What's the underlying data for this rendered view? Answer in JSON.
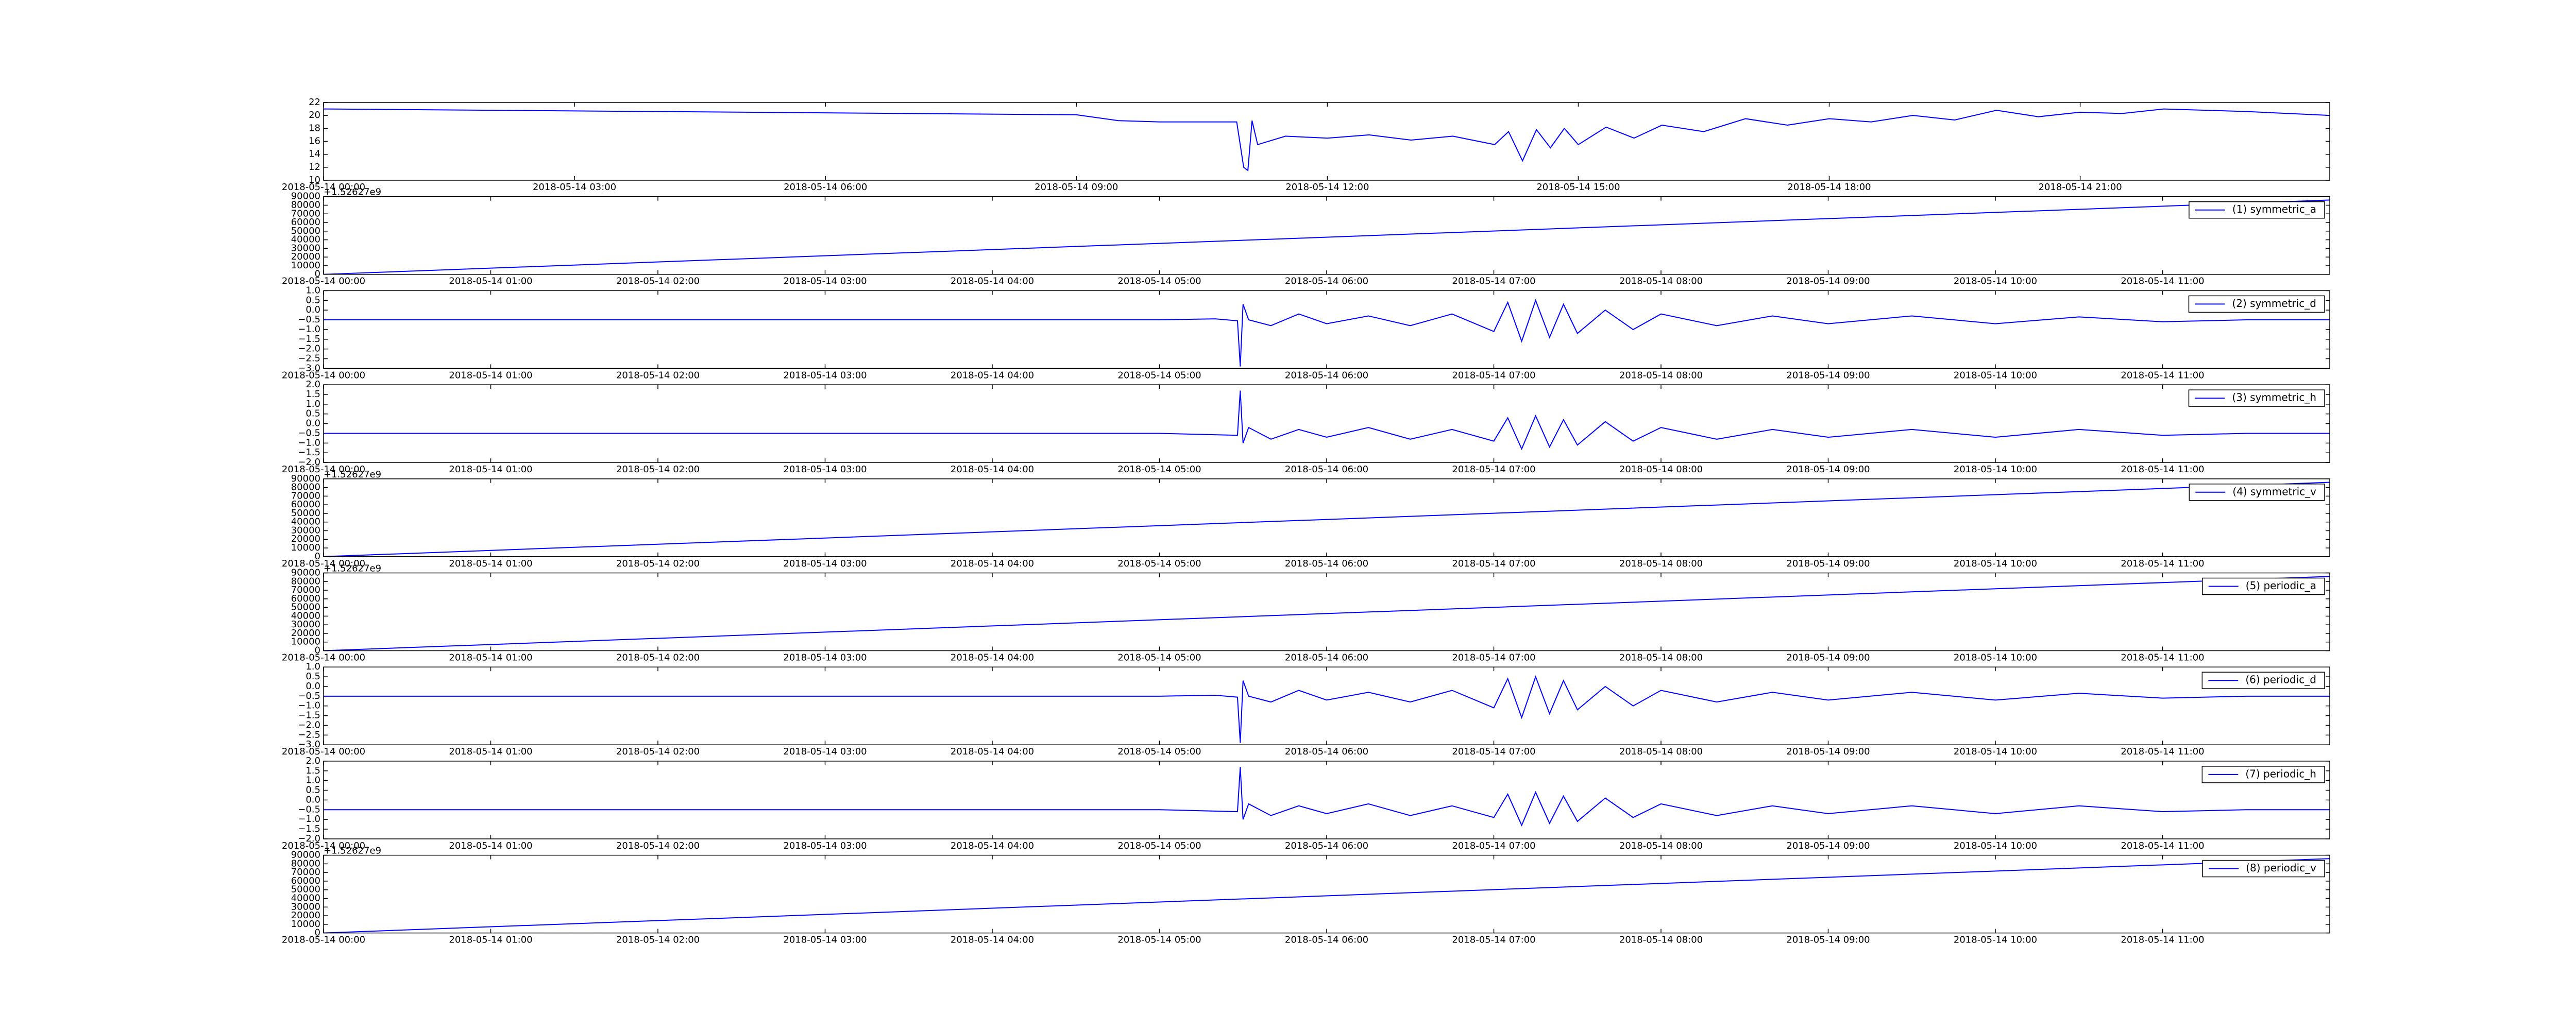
{
  "chart_data": [
    {
      "type": "line",
      "xlim": [
        "2018-05-14 00:00",
        "2018-05-14 23:59"
      ],
      "ylim": [
        10,
        22
      ],
      "yticks": [
        10,
        12,
        14,
        16,
        18,
        20,
        22
      ],
      "xticks": [
        "2018-05-14 00:00",
        "2018-05-14 03:00",
        "2018-05-14 06:00",
        "2018-05-14 09:00",
        "2018-05-14 12:00",
        "2018-05-14 15:00",
        "2018-05-14 18:00",
        "2018-05-14 21:00"
      ],
      "x": [
        "2018-05-14 00:00",
        "2018-05-14 03:00",
        "2018-05-14 06:00",
        "2018-05-14 09:00",
        "2018-05-14 09:30",
        "2018-05-14 10:00",
        "2018-05-14 10:55",
        "2018-05-14 11:00",
        "2018-05-14 11:03",
        "2018-05-14 11:06",
        "2018-05-14 11:10",
        "2018-05-14 11:30",
        "2018-05-14 12:00",
        "2018-05-14 12:30",
        "2018-05-14 13:00",
        "2018-05-14 13:30",
        "2018-05-14 14:00",
        "2018-05-14 14:10",
        "2018-05-14 14:20",
        "2018-05-14 14:30",
        "2018-05-14 14:40",
        "2018-05-14 14:50",
        "2018-05-14 15:00",
        "2018-05-14 15:20",
        "2018-05-14 15:40",
        "2018-05-14 16:00",
        "2018-05-14 16:30",
        "2018-05-14 17:00",
        "2018-05-14 17:30",
        "2018-05-14 18:00",
        "2018-05-14 18:30",
        "2018-05-14 19:00",
        "2018-05-14 19:30",
        "2018-05-14 20:00",
        "2018-05-14 20:30",
        "2018-05-14 21:00",
        "2018-05-14 21:30",
        "2018-05-14 22:00",
        "2018-05-14 22:30",
        "2018-05-14 23:00",
        "2018-05-14 23:59"
      ],
      "series": [
        {
          "color": "#0000ff",
          "values": [
            21.0,
            20.7,
            20.4,
            20.1,
            19.2,
            19.0,
            19.0,
            12.0,
            11.5,
            19.2,
            15.5,
            16.8,
            16.5,
            17.0,
            16.2,
            16.8,
            15.5,
            17.5,
            13.0,
            17.8,
            15.0,
            18.0,
            15.5,
            18.2,
            16.5,
            18.5,
            17.5,
            19.5,
            18.5,
            19.5,
            19.0,
            20.0,
            19.3,
            20.8,
            19.8,
            20.5,
            20.3,
            21.0,
            20.8,
            20.6,
            20.0
          ]
        }
      ]
    },
    {
      "type": "line",
      "offset_text": "+1.52627e9",
      "xlim": [
        "2018-05-14 00:00",
        "2018-05-14 12:00"
      ],
      "ylim": [
        0,
        90000
      ],
      "yticks": [
        0,
        10000,
        20000,
        30000,
        40000,
        50000,
        60000,
        70000,
        80000,
        90000
      ],
      "xticks": [
        "2018-05-14 00:00",
        "2018-05-14 01:00",
        "2018-05-14 02:00",
        "2018-05-14 03:00",
        "2018-05-14 04:00",
        "2018-05-14 05:00",
        "2018-05-14 06:00",
        "2018-05-14 07:00",
        "2018-05-14 08:00",
        "2018-05-14 09:00",
        "2018-05-14 10:00",
        "2018-05-14 11:00"
      ],
      "x": [
        "2018-05-14 00:00",
        "2018-05-14 12:00"
      ],
      "series": [
        {
          "name": "(1) symmetric_a",
          "color": "#0000ff",
          "values": [
            0,
            86000
          ]
        }
      ]
    },
    {
      "type": "line",
      "xlim": [
        "2018-05-14 00:00",
        "2018-05-14 12:00"
      ],
      "ylim": [
        -3.0,
        1.0
      ],
      "yticks": [
        {
          "value": -3.0,
          "label": "−3.0"
        },
        {
          "value": -2.5,
          "label": "−2.5"
        },
        {
          "value": -2.0,
          "label": "−2.0"
        },
        {
          "value": -1.5,
          "label": "−1.5"
        },
        {
          "value": -1.0,
          "label": "−1.0"
        },
        {
          "value": -0.5,
          "label": "−0.5"
        },
        {
          "value": 0,
          "label": "0.0"
        },
        {
          "value": 0.5,
          "label": "0.5"
        },
        {
          "value": 1.0,
          "label": "1.0"
        }
      ],
      "xticks": [
        "2018-05-14 00:00",
        "2018-05-14 01:00",
        "2018-05-14 02:00",
        "2018-05-14 03:00",
        "2018-05-14 04:00",
        "2018-05-14 05:00",
        "2018-05-14 06:00",
        "2018-05-14 07:00",
        "2018-05-14 08:00",
        "2018-05-14 09:00",
        "2018-05-14 10:00",
        "2018-05-14 11:00"
      ],
      "x": [
        "2018-05-14 00:00",
        "2018-05-14 05:00",
        "2018-05-14 05:20",
        "2018-05-14 05:28",
        "2018-05-14 05:29",
        "2018-05-14 05:30",
        "2018-05-14 05:32",
        "2018-05-14 05:40",
        "2018-05-14 05:50",
        "2018-05-14 06:00",
        "2018-05-14 06:15",
        "2018-05-14 06:30",
        "2018-05-14 06:45",
        "2018-05-14 07:00",
        "2018-05-14 07:05",
        "2018-05-14 07:10",
        "2018-05-14 07:15",
        "2018-05-14 07:20",
        "2018-05-14 07:25",
        "2018-05-14 07:30",
        "2018-05-14 07:40",
        "2018-05-14 07:50",
        "2018-05-14 08:00",
        "2018-05-14 08:20",
        "2018-05-14 08:40",
        "2018-05-14 09:00",
        "2018-05-14 09:30",
        "2018-05-14 10:00",
        "2018-05-14 10:30",
        "2018-05-14 11:00",
        "2018-05-14 11:30",
        "2018-05-14 12:00"
      ],
      "series": [
        {
          "name": "(2) symmetric_d",
          "color": "#0000ff",
          "values": [
            -0.5,
            -0.5,
            -0.45,
            -0.55,
            -2.9,
            0.3,
            -0.5,
            -0.8,
            -0.2,
            -0.7,
            -0.3,
            -0.8,
            -0.2,
            -1.1,
            0.4,
            -1.6,
            0.5,
            -1.4,
            0.3,
            -1.2,
            0.0,
            -1.0,
            -0.2,
            -0.8,
            -0.3,
            -0.7,
            -0.3,
            -0.7,
            -0.35,
            -0.6,
            -0.5,
            -0.5
          ]
        }
      ]
    },
    {
      "type": "line",
      "xlim": [
        "2018-05-14 00:00",
        "2018-05-14 12:00"
      ],
      "ylim": [
        -2.0,
        2.0
      ],
      "yticks": [
        {
          "value": -2.0,
          "label": "−2.0"
        },
        {
          "value": -1.5,
          "label": "−1.5"
        },
        {
          "value": -1.0,
          "label": "−1.0"
        },
        {
          "value": -0.5,
          "label": "−0.5"
        },
        {
          "value": 0,
          "label": "0.0"
        },
        {
          "value": 0.5,
          "label": "0.5"
        },
        {
          "value": 1.0,
          "label": "1.0"
        },
        {
          "value": 1.5,
          "label": "1.5"
        },
        {
          "value": 2.0,
          "label": "2.0"
        }
      ],
      "xticks": [
        "2018-05-14 00:00",
        "2018-05-14 01:00",
        "2018-05-14 02:00",
        "2018-05-14 03:00",
        "2018-05-14 04:00",
        "2018-05-14 05:00",
        "2018-05-14 06:00",
        "2018-05-14 07:00",
        "2018-05-14 08:00",
        "2018-05-14 09:00",
        "2018-05-14 10:00",
        "2018-05-14 11:00"
      ],
      "x": [
        "2018-05-14 00:00",
        "2018-05-14 05:00",
        "2018-05-14 05:28",
        "2018-05-14 05:29",
        "2018-05-14 05:30",
        "2018-05-14 05:32",
        "2018-05-14 05:40",
        "2018-05-14 05:50",
        "2018-05-14 06:00",
        "2018-05-14 06:15",
        "2018-05-14 06:30",
        "2018-05-14 06:45",
        "2018-05-14 07:00",
        "2018-05-14 07:05",
        "2018-05-14 07:10",
        "2018-05-14 07:15",
        "2018-05-14 07:20",
        "2018-05-14 07:25",
        "2018-05-14 07:30",
        "2018-05-14 07:40",
        "2018-05-14 07:50",
        "2018-05-14 08:00",
        "2018-05-14 08:20",
        "2018-05-14 08:40",
        "2018-05-14 09:00",
        "2018-05-14 09:30",
        "2018-05-14 10:00",
        "2018-05-14 10:30",
        "2018-05-14 11:00",
        "2018-05-14 11:30",
        "2018-05-14 12:00"
      ],
      "series": [
        {
          "name": "(3) symmetric_h",
          "color": "#0000ff",
          "values": [
            -0.5,
            -0.5,
            -0.6,
            1.7,
            -1.0,
            -0.2,
            -0.8,
            -0.3,
            -0.7,
            -0.2,
            -0.8,
            -0.3,
            -0.9,
            0.3,
            -1.3,
            0.4,
            -1.2,
            0.2,
            -1.1,
            0.1,
            -0.9,
            -0.2,
            -0.8,
            -0.3,
            -0.7,
            -0.3,
            -0.7,
            -0.3,
            -0.6,
            -0.5,
            -0.5
          ]
        }
      ]
    },
    {
      "type": "line",
      "offset_text": "+1.52627e9",
      "xlim": [
        "2018-05-14 00:00",
        "2018-05-14 12:00"
      ],
      "ylim": [
        0,
        90000
      ],
      "yticks": [
        0,
        10000,
        20000,
        30000,
        40000,
        50000,
        60000,
        70000,
        80000,
        90000
      ],
      "xticks": [
        "2018-05-14 00:00",
        "2018-05-14 01:00",
        "2018-05-14 02:00",
        "2018-05-14 03:00",
        "2018-05-14 04:00",
        "2018-05-14 05:00",
        "2018-05-14 06:00",
        "2018-05-14 07:00",
        "2018-05-14 08:00",
        "2018-05-14 09:00",
        "2018-05-14 10:00",
        "2018-05-14 11:00"
      ],
      "x": [
        "2018-05-14 00:00",
        "2018-05-14 12:00"
      ],
      "series": [
        {
          "name": "(4) symmetric_v",
          "color": "#0000ff",
          "values": [
            0,
            86000
          ]
        }
      ]
    },
    {
      "type": "line",
      "offset_text": "+1.52627e9",
      "xlim": [
        "2018-05-14 00:00",
        "2018-05-14 12:00"
      ],
      "ylim": [
        0,
        90000
      ],
      "yticks": [
        0,
        10000,
        20000,
        30000,
        40000,
        50000,
        60000,
        70000,
        80000,
        90000
      ],
      "xticks": [
        "2018-05-14 00:00",
        "2018-05-14 01:00",
        "2018-05-14 02:00",
        "2018-05-14 03:00",
        "2018-05-14 04:00",
        "2018-05-14 05:00",
        "2018-05-14 06:00",
        "2018-05-14 07:00",
        "2018-05-14 08:00",
        "2018-05-14 09:00",
        "2018-05-14 10:00",
        "2018-05-14 11:00"
      ],
      "x": [
        "2018-05-14 00:00",
        "2018-05-14 12:00"
      ],
      "series": [
        {
          "name": "(5) periodic_a",
          "color": "#0000ff",
          "values": [
            0,
            86000
          ]
        }
      ]
    },
    {
      "type": "line",
      "xlim": [
        "2018-05-14 00:00",
        "2018-05-14 12:00"
      ],
      "ylim": [
        -3.0,
        1.0
      ],
      "yticks": [
        {
          "value": -3.0,
          "label": "−3.0"
        },
        {
          "value": -2.5,
          "label": "−2.5"
        },
        {
          "value": -2.0,
          "label": "−2.0"
        },
        {
          "value": -1.5,
          "label": "−1.5"
        },
        {
          "value": -1.0,
          "label": "−1.0"
        },
        {
          "value": -0.5,
          "label": "−0.5"
        },
        {
          "value": 0,
          "label": "0.0"
        },
        {
          "value": 0.5,
          "label": "0.5"
        },
        {
          "value": 1.0,
          "label": "1.0"
        }
      ],
      "xticks": [
        "2018-05-14 00:00",
        "2018-05-14 01:00",
        "2018-05-14 02:00",
        "2018-05-14 03:00",
        "2018-05-14 04:00",
        "2018-05-14 05:00",
        "2018-05-14 06:00",
        "2018-05-14 07:00",
        "2018-05-14 08:00",
        "2018-05-14 09:00",
        "2018-05-14 10:00",
        "2018-05-14 11:00"
      ],
      "x": [
        "2018-05-14 00:00",
        "2018-05-14 05:00",
        "2018-05-14 05:20",
        "2018-05-14 05:28",
        "2018-05-14 05:29",
        "2018-05-14 05:30",
        "2018-05-14 05:32",
        "2018-05-14 05:40",
        "2018-05-14 05:50",
        "2018-05-14 06:00",
        "2018-05-14 06:15",
        "2018-05-14 06:30",
        "2018-05-14 06:45",
        "2018-05-14 07:00",
        "2018-05-14 07:05",
        "2018-05-14 07:10",
        "2018-05-14 07:15",
        "2018-05-14 07:20",
        "2018-05-14 07:25",
        "2018-05-14 07:30",
        "2018-05-14 07:40",
        "2018-05-14 07:50",
        "2018-05-14 08:00",
        "2018-05-14 08:20",
        "2018-05-14 08:40",
        "2018-05-14 09:00",
        "2018-05-14 09:30",
        "2018-05-14 10:00",
        "2018-05-14 10:30",
        "2018-05-14 11:00",
        "2018-05-14 11:30",
        "2018-05-14 12:00"
      ],
      "series": [
        {
          "name": "(6) periodic_d",
          "color": "#0000ff",
          "values": [
            -0.5,
            -0.5,
            -0.45,
            -0.55,
            -2.9,
            0.3,
            -0.5,
            -0.8,
            -0.2,
            -0.7,
            -0.3,
            -0.8,
            -0.2,
            -1.1,
            0.4,
            -1.6,
            0.5,
            -1.4,
            0.3,
            -1.2,
            0.0,
            -1.0,
            -0.2,
            -0.8,
            -0.3,
            -0.7,
            -0.3,
            -0.7,
            -0.35,
            -0.6,
            -0.5,
            -0.5
          ]
        }
      ]
    },
    {
      "type": "line",
      "xlim": [
        "2018-05-14 00:00",
        "2018-05-14 12:00"
      ],
      "ylim": [
        -2.0,
        2.0
      ],
      "yticks": [
        {
          "value": -2.0,
          "label": "−2.0"
        },
        {
          "value": -1.5,
          "label": "−1.5"
        },
        {
          "value": -1.0,
          "label": "−1.0"
        },
        {
          "value": -0.5,
          "label": "−0.5"
        },
        {
          "value": 0,
          "label": "0.0"
        },
        {
          "value": 0.5,
          "label": "0.5"
        },
        {
          "value": 1.0,
          "label": "1.0"
        },
        {
          "value": 1.5,
          "label": "1.5"
        },
        {
          "value": 2.0,
          "label": "2.0"
        }
      ],
      "xticks": [
        "2018-05-14 00:00",
        "2018-05-14 01:00",
        "2018-05-14 02:00",
        "2018-05-14 03:00",
        "2018-05-14 04:00",
        "2018-05-14 05:00",
        "2018-05-14 06:00",
        "2018-05-14 07:00",
        "2018-05-14 08:00",
        "2018-05-14 09:00",
        "2018-05-14 10:00",
        "2018-05-14 11:00"
      ],
      "x": [
        "2018-05-14 00:00",
        "2018-05-14 05:00",
        "2018-05-14 05:28",
        "2018-05-14 05:29",
        "2018-05-14 05:30",
        "2018-05-14 05:32",
        "2018-05-14 05:40",
        "2018-05-14 05:50",
        "2018-05-14 06:00",
        "2018-05-14 06:15",
        "2018-05-14 06:30",
        "2018-05-14 06:45",
        "2018-05-14 07:00",
        "2018-05-14 07:05",
        "2018-05-14 07:10",
        "2018-05-14 07:15",
        "2018-05-14 07:20",
        "2018-05-14 07:25",
        "2018-05-14 07:30",
        "2018-05-14 07:40",
        "2018-05-14 07:50",
        "2018-05-14 08:00",
        "2018-05-14 08:20",
        "2018-05-14 08:40",
        "2018-05-14 09:00",
        "2018-05-14 09:30",
        "2018-05-14 10:00",
        "2018-05-14 10:30",
        "2018-05-14 11:00",
        "2018-05-14 11:30",
        "2018-05-14 12:00"
      ],
      "series": [
        {
          "name": "(7) periodic_h",
          "color": "#0000ff",
          "values": [
            -0.5,
            -0.5,
            -0.6,
            1.7,
            -1.0,
            -0.2,
            -0.8,
            -0.3,
            -0.7,
            -0.2,
            -0.8,
            -0.3,
            -0.9,
            0.3,
            -1.3,
            0.4,
            -1.2,
            0.2,
            -1.1,
            0.1,
            -0.9,
            -0.2,
            -0.8,
            -0.3,
            -0.7,
            -0.3,
            -0.7,
            -0.3,
            -0.6,
            -0.5,
            -0.5
          ]
        }
      ]
    },
    {
      "type": "line",
      "offset_text": "+1.52627e9",
      "xlim": [
        "2018-05-14 00:00",
        "2018-05-14 12:00"
      ],
      "ylim": [
        0,
        90000
      ],
      "yticks": [
        0,
        10000,
        20000,
        30000,
        40000,
        50000,
        60000,
        70000,
        80000,
        90000
      ],
      "xticks": [
        "2018-05-14 00:00",
        "2018-05-14 01:00",
        "2018-05-14 02:00",
        "2018-05-14 03:00",
        "2018-05-14 04:00",
        "2018-05-14 05:00",
        "2018-05-14 06:00",
        "2018-05-14 07:00",
        "2018-05-14 08:00",
        "2018-05-14 09:00",
        "2018-05-14 10:00",
        "2018-05-14 11:00"
      ],
      "x": [
        "2018-05-14 00:00",
        "2018-05-14 12:00"
      ],
      "series": [
        {
          "name": "(8) periodic_v",
          "color": "#0000ff",
          "values": [
            0,
            86000
          ]
        }
      ]
    }
  ]
}
